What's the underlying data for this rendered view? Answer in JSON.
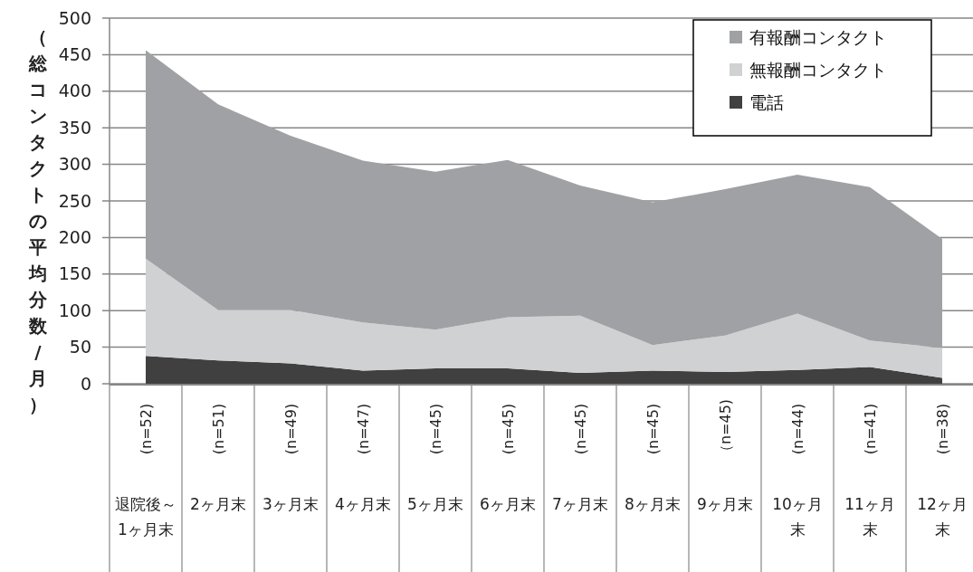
{
  "chart_data": {
    "type": "area",
    "stacked": true,
    "ylabel": "（総コンタクトの平均分数/月）",
    "categories": [
      "退院後～1ヶ月末",
      "2ヶ月末",
      "3ヶ月末",
      "4ヶ月末",
      "5ヶ月末",
      "6ヶ月末",
      "7ヶ月末",
      "8ヶ月末",
      "9ヶ月末",
      "10ヶ月末",
      "11ヶ月末",
      "12ヶ月末"
    ],
    "annotations": [
      "(n=52)",
      "(n=51)",
      "(n=49)",
      "(n=47)",
      "(n=45)",
      "(n=45)",
      "(n=45)",
      "(n=45)",
      "（n=45)",
      "(n=44)",
      "(n=41)",
      "(n=38)"
    ],
    "series": [
      {
        "name": "電話",
        "color": "#404040",
        "values": [
          38,
          32,
          28,
          18,
          21,
          21,
          15,
          18,
          16,
          19,
          23,
          8
        ]
      },
      {
        "name": "無報酬コンタクト",
        "color": "#d0d1d3",
        "values": [
          133,
          69,
          73,
          66,
          53,
          70,
          78,
          35,
          50,
          77,
          36,
          41
        ]
      },
      {
        "name": "有報酬コンタクト",
        "color": "#a0a1a5",
        "values": [
          285,
          281,
          238,
          221,
          216,
          215,
          178,
          195,
          200,
          190,
          210,
          149
        ]
      }
    ],
    "ylim": [
      0,
      500
    ],
    "yticks": [
      0,
      50,
      100,
      150,
      200,
      250,
      300,
      350,
      400,
      450,
      500
    ],
    "grid": "y",
    "legend": "top right"
  }
}
